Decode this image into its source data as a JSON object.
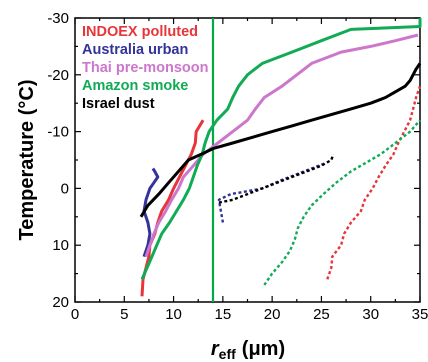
{
  "chart_data": {
    "type": "line",
    "xlabel": "r",
    "xlabel_sub": "eff",
    "xlabel_unit": "(μm)",
    "ylabel": "Temperature (°C)",
    "xlim": [
      0,
      35
    ],
    "ylim": [
      20,
      -30
    ],
    "y_inverted": true,
    "x_ticks": [
      0,
      5,
      10,
      15,
      20,
      25,
      30,
      35
    ],
    "y_ticks": [
      20,
      10,
      0,
      -10,
      -20,
      -30
    ],
    "y_tick_labels": [
      "20",
      "10",
      "0",
      "-10",
      "-20",
      "-30"
    ],
    "legend_placement": "top-left",
    "reference_line": {
      "x": 14,
      "color": "#00aa44"
    },
    "series": [
      {
        "name": "INDOEX polluted",
        "color": "#e8353a",
        "style": "solid",
        "points": [
          [
            6.8,
            19
          ],
          [
            6.9,
            16
          ],
          [
            7.2,
            14
          ],
          [
            7.5,
            12
          ],
          [
            7.6,
            10
          ],
          [
            8.1,
            8
          ],
          [
            8.4,
            6
          ],
          [
            8.8,
            4
          ],
          [
            9.5,
            2
          ],
          [
            10,
            0
          ],
          [
            10.6,
            -2
          ],
          [
            11.2,
            -4
          ],
          [
            11.8,
            -6
          ],
          [
            12.2,
            -8
          ],
          [
            12.3,
            -10
          ],
          [
            13,
            -12
          ]
        ]
      },
      {
        "name": "INDOEX polluted",
        "color": "#e8353a",
        "style": "dotted",
        "points": [
          [
            25.6,
            16
          ],
          [
            26,
            14
          ],
          [
            26.1,
            12
          ],
          [
            27,
            10
          ],
          [
            27.3,
            8
          ],
          [
            28,
            6
          ],
          [
            29,
            4
          ],
          [
            29.4,
            2
          ],
          [
            30.2,
            0
          ],
          [
            30.8,
            -2
          ],
          [
            31.5,
            -4
          ],
          [
            32.3,
            -6
          ],
          [
            32.8,
            -8
          ],
          [
            33.4,
            -10
          ],
          [
            34,
            -12
          ],
          [
            34.3,
            -14
          ],
          [
            34.6,
            -16
          ],
          [
            35,
            -18
          ]
        ]
      },
      {
        "name": "Australia urban",
        "color": "#333399",
        "style": "solid",
        "points": [
          [
            7,
            12
          ],
          [
            7.4,
            10
          ],
          [
            7.6,
            8
          ],
          [
            7.4,
            6
          ],
          [
            7,
            4
          ],
          [
            7.2,
            2
          ],
          [
            7.6,
            0
          ],
          [
            8,
            -1
          ],
          [
            8.4,
            -2
          ],
          [
            8.1,
            -3
          ],
          [
            7.9,
            -3.5
          ]
        ]
      },
      {
        "name": "Australia urban",
        "color": "#333399",
        "style": "dotted",
        "points": [
          [
            15,
            6
          ],
          [
            14.8,
            4
          ],
          [
            14.6,
            2
          ],
          [
            15.8,
            1
          ],
          [
            17.5,
            0.5
          ],
          [
            19,
            0
          ],
          [
            21,
            -1.5
          ],
          [
            22.5,
            -2.5
          ],
          [
            24,
            -3.5
          ],
          [
            25.5,
            -4.5
          ]
        ]
      },
      {
        "name": "Thai pre-monsoon",
        "color": "#cc77cc",
        "style": "solid",
        "points": [
          [
            7.2,
            12
          ],
          [
            7.6,
            10
          ],
          [
            8,
            8
          ],
          [
            8.5,
            6
          ],
          [
            9.2,
            4
          ],
          [
            9.8,
            2
          ],
          [
            10.5,
            0
          ],
          [
            11,
            -2
          ],
          [
            12,
            -4
          ],
          [
            13,
            -6
          ],
          [
            14.5,
            -8
          ],
          [
            16,
            -10
          ],
          [
            17.5,
            -12
          ],
          [
            18.3,
            -14
          ],
          [
            19.2,
            -16
          ],
          [
            21,
            -18
          ],
          [
            22.5,
            -20
          ],
          [
            24,
            -22
          ],
          [
            27,
            -24
          ],
          [
            30,
            -25
          ],
          [
            32.5,
            -26
          ],
          [
            34.8,
            -27
          ]
        ]
      },
      {
        "name": "Amazon smoke",
        "color": "#11aa55",
        "style": "solid",
        "points": [
          [
            6.8,
            16
          ],
          [
            7.3,
            14
          ],
          [
            7.8,
            12
          ],
          [
            8.3,
            10
          ],
          [
            8.8,
            8
          ],
          [
            9.6,
            6
          ],
          [
            10.3,
            4
          ],
          [
            11,
            2
          ],
          [
            11.6,
            0
          ],
          [
            12,
            -2
          ],
          [
            12.4,
            -4
          ],
          [
            12.9,
            -6
          ],
          [
            13.2,
            -8
          ],
          [
            13.6,
            -10
          ],
          [
            14.4,
            -12
          ],
          [
            15.5,
            -14
          ],
          [
            16,
            -16
          ],
          [
            16.6,
            -18
          ],
          [
            17.5,
            -20
          ],
          [
            19,
            -22
          ],
          [
            22,
            -24
          ],
          [
            25,
            -26
          ],
          [
            28,
            -28
          ],
          [
            35,
            -28.5
          ],
          [
            35,
            -30
          ]
        ]
      },
      {
        "name": "Amazon smoke",
        "color": "#11aa55",
        "style": "dotted",
        "points": [
          [
            19.2,
            17
          ],
          [
            20,
            15
          ],
          [
            21,
            13
          ],
          [
            21.8,
            11
          ],
          [
            22.3,
            9
          ],
          [
            22.6,
            7
          ],
          [
            23.2,
            5
          ],
          [
            24,
            3
          ],
          [
            25.2,
            1
          ],
          [
            26.5,
            -1
          ],
          [
            28,
            -3
          ],
          [
            29.5,
            -4.5
          ],
          [
            31,
            -6
          ],
          [
            32.5,
            -8
          ],
          [
            34,
            -10
          ],
          [
            35,
            -12
          ]
        ]
      },
      {
        "name": "Israel dust",
        "color": "#000000",
        "style": "solid",
        "points": [
          [
            6.7,
            5
          ],
          [
            7.4,
            3
          ],
          [
            8.5,
            1
          ],
          [
            9.5,
            -1
          ],
          [
            10.5,
            -3
          ],
          [
            11.5,
            -5
          ],
          [
            12.8,
            -6
          ],
          [
            14,
            -7
          ],
          [
            16,
            -8
          ],
          [
            18,
            -9
          ],
          [
            20,
            -10
          ],
          [
            22,
            -11
          ],
          [
            24,
            -12
          ],
          [
            26,
            -13
          ],
          [
            28,
            -14
          ],
          [
            30,
            -15
          ],
          [
            31.5,
            -16
          ],
          [
            32.5,
            -17
          ],
          [
            33.5,
            -18
          ],
          [
            34,
            -19
          ],
          [
            34.6,
            -21
          ],
          [
            35,
            -22
          ]
        ]
      },
      {
        "name": "Israel dust",
        "color": "#000000",
        "style": "dotted",
        "points": [
          [
            14.6,
            2.5
          ],
          [
            16,
            2
          ],
          [
            17.5,
            1
          ],
          [
            19,
            0
          ],
          [
            20.5,
            -1
          ],
          [
            22,
            -2
          ],
          [
            23.5,
            -3
          ],
          [
            25,
            -4
          ],
          [
            26,
            -5
          ],
          [
            26.2,
            -6
          ]
        ]
      }
    ]
  },
  "legend": [
    {
      "label": "INDOEX polluted",
      "color": "#e8353a"
    },
    {
      "label": "Australia urban",
      "color": "#333399"
    },
    {
      "label": "Thai pre-monsoon",
      "color": "#cc77cc"
    },
    {
      "label": "Amazon smoke",
      "color": "#11aa55"
    },
    {
      "label": "Israel dust",
      "color": "#000000"
    }
  ]
}
